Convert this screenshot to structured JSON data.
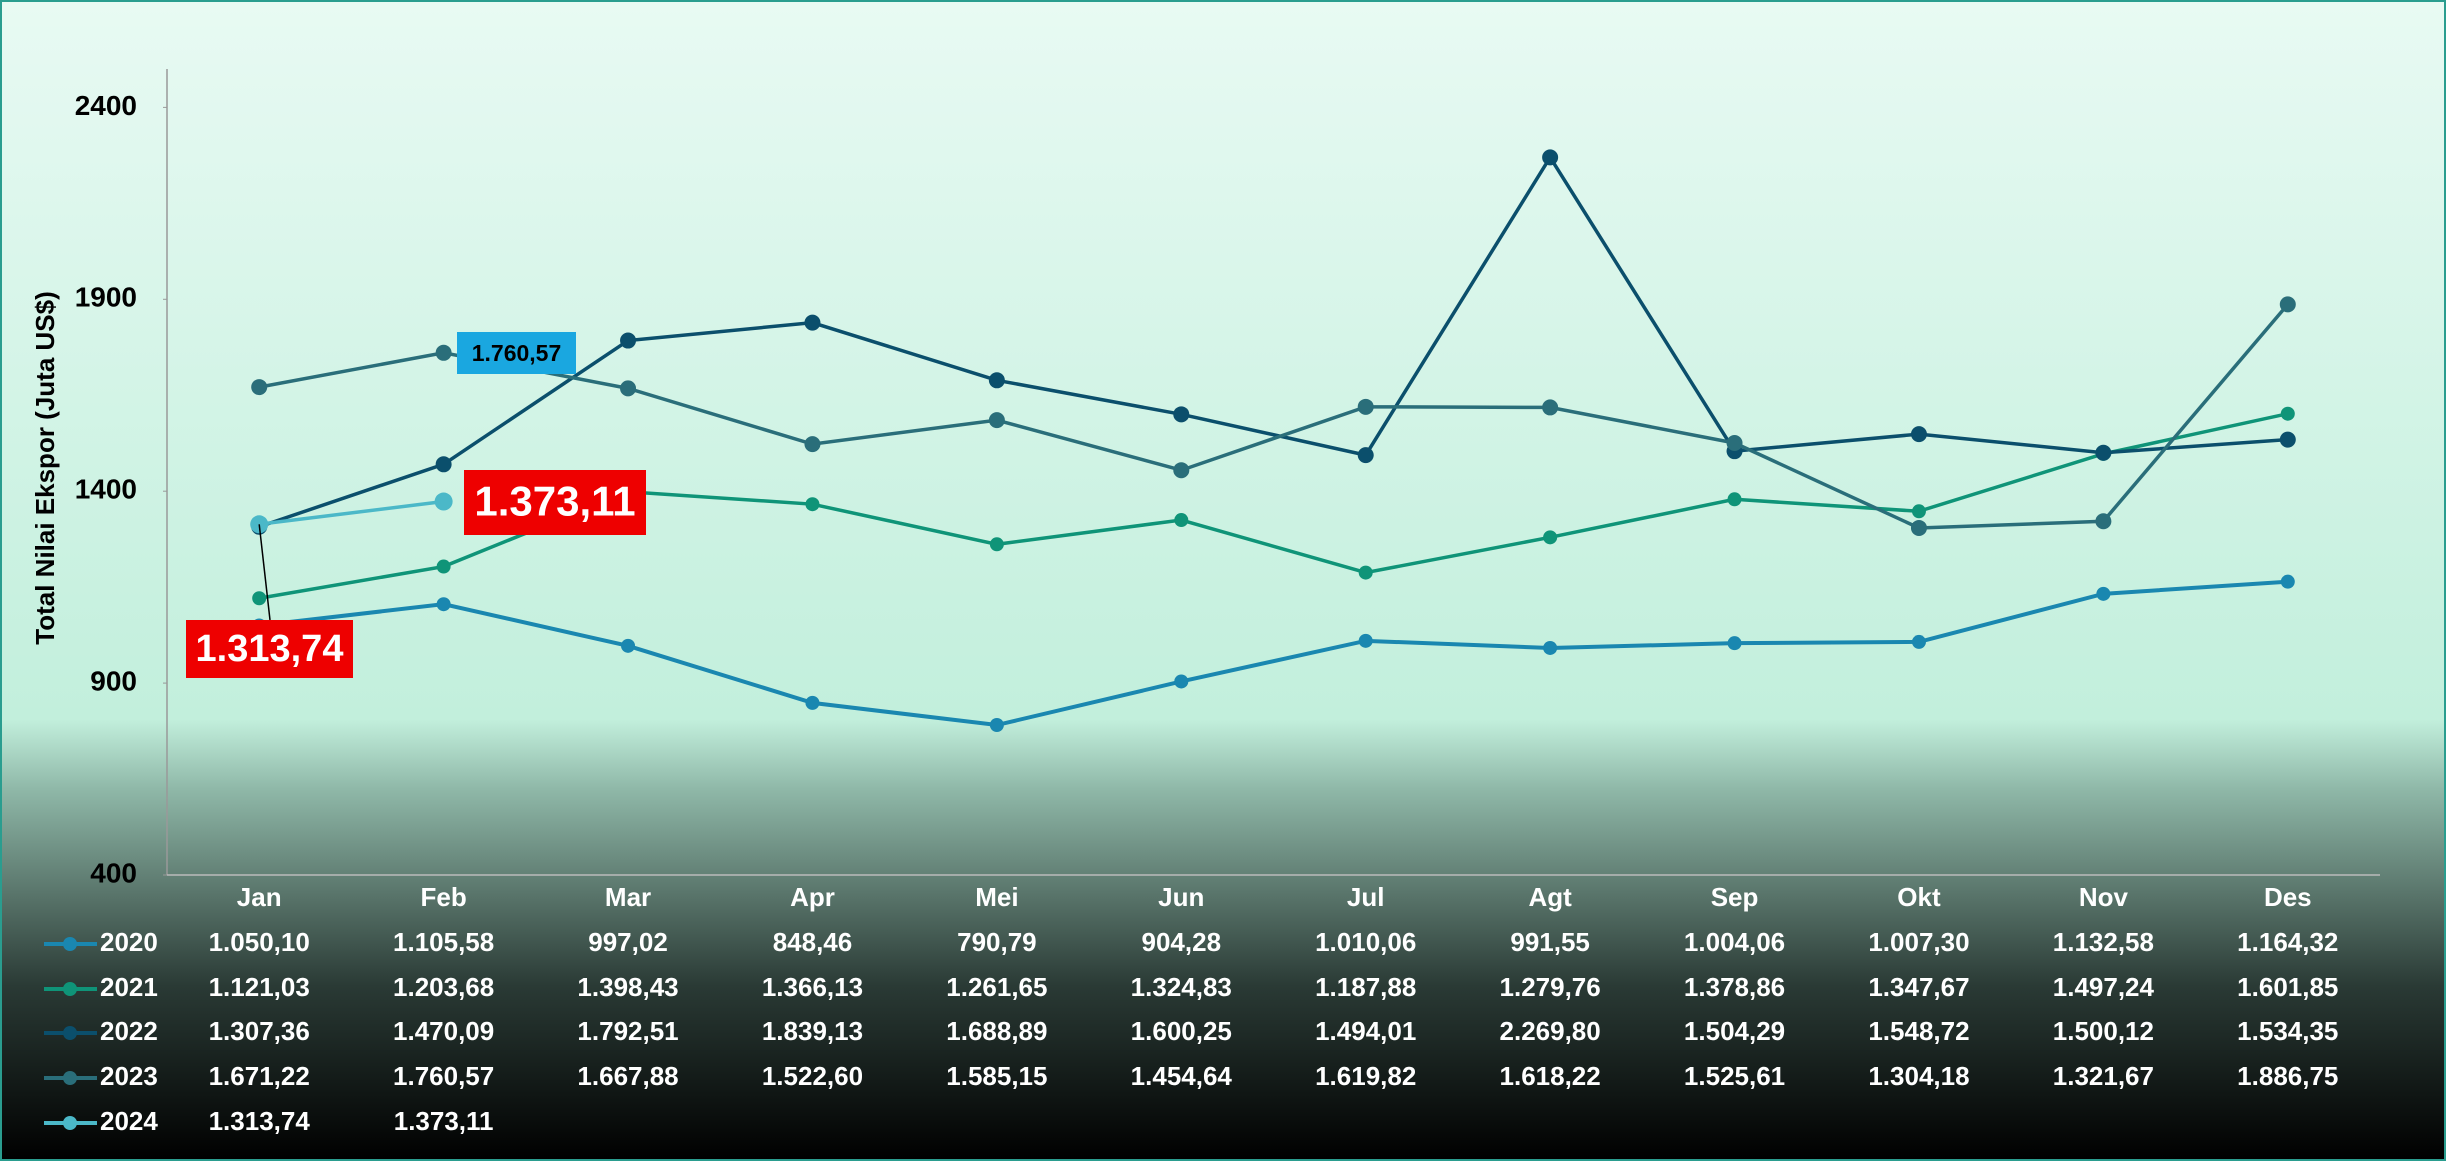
{
  "chart_data": {
    "type": "line",
    "y_axis_label": "Total Nilai Ekspor (Juta US$)",
    "categories": [
      "Jan",
      "Feb",
      "Mar",
      "Apr",
      "Mei",
      "Jun",
      "Jul",
      "Agt",
      "Sep",
      "Okt",
      "Nov",
      "Des"
    ],
    "ylim": [
      400,
      2500
    ],
    "yticks": [
      400,
      900,
      1400,
      1900,
      2400
    ],
    "series": [
      {
        "name": "2020",
        "color": "#1a87b0",
        "values": [
          1050.1,
          1105.58,
          997.02,
          848.46,
          790.79,
          904.28,
          1010.06,
          991.55,
          1004.06,
          1007.3,
          1132.58,
          1164.32
        ],
        "value_labels": [
          "1.050,10",
          "1.105,58",
          "997,02",
          "848,46",
          "790,79",
          "904,28",
          "1.010,06",
          "991,55",
          "1.004,06",
          "1.007,30",
          "1.132,58",
          "1.164,32"
        ]
      },
      {
        "name": "2021",
        "color": "#0f9478",
        "values": [
          1121.03,
          1203.68,
          1398.43,
          1366.13,
          1261.65,
          1324.83,
          1187.88,
          1279.76,
          1378.86,
          1347.67,
          1497.24,
          1601.85
        ],
        "value_labels": [
          "1.121,03",
          "1.203,68",
          "1.398,43",
          "1.366,13",
          "1.261,65",
          "1.324,83",
          "1.187,88",
          "1.279,76",
          "1.378,86",
          "1.347,67",
          "1.497,24",
          "1.601,85"
        ]
      },
      {
        "name": "2022",
        "color": "#0b4f6c",
        "values": [
          1307.36,
          1470.09,
          1792.51,
          1839.13,
          1688.89,
          1600.25,
          1494.01,
          2269.8,
          1504.29,
          1548.72,
          1500.12,
          1534.35
        ],
        "value_labels": [
          "1.307,36",
          "1.470,09",
          "1.792,51",
          "1.839,13",
          "1.688,89",
          "1.600,25",
          "1.494,01",
          "2.269,80",
          "1.504,29",
          "1.548,72",
          "1.500,12",
          "1.534,35"
        ]
      },
      {
        "name": "2023",
        "color": "#2a6e7a",
        "values": [
          1671.22,
          1760.57,
          1667.88,
          1522.6,
          1585.15,
          1454.64,
          1619.82,
          1618.22,
          1525.61,
          1304.18,
          1321.67,
          1886.75
        ],
        "value_labels": [
          "1.671,22",
          "1.760,57",
          "1.667,88",
          "1.522,60",
          "1.585,15",
          "1.454,64",
          "1.619,82",
          "1.618,22",
          "1.525,61",
          "1.304,18",
          "1.321,67",
          "1.886,75"
        ]
      },
      {
        "name": "2024",
        "color": "#4bb8c8",
        "values": [
          1313.74,
          1373.11,
          null,
          null,
          null,
          null,
          null,
          null,
          null,
          null,
          null,
          null
        ],
        "value_labels": [
          "1.313,74",
          "1.373,11",
          null,
          null,
          null,
          null,
          null,
          null,
          null,
          null,
          null,
          null
        ]
      }
    ]
  }
}
